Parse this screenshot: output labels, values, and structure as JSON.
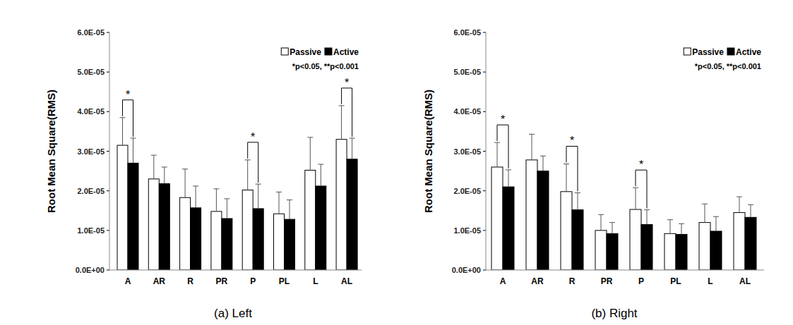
{
  "chart_data": [
    {
      "type": "bar",
      "title": "(a)  Left",
      "y_label": "Root Mean Square(RMS)",
      "categories": [
        "A",
        "AR",
        "R",
        "PR",
        "P",
        "PL",
        "L",
        "AL"
      ],
      "series": [
        {
          "name": "Passive",
          "color": "#ffffff",
          "values": [
            3.15e-05,
            2.3e-05,
            1.83e-05,
            1.48e-05,
            2.02e-05,
            1.42e-05,
            2.52e-05,
            3.3e-05
          ],
          "errors": [
            7e-06,
            6e-06,
            7.2e-06,
            5.7e-06,
            7.6e-06,
            5.5e-06,
            8.3e-06,
            8.5e-06
          ]
        },
        {
          "name": "Active",
          "color": "#000000",
          "values": [
            2.7e-05,
            2.18e-05,
            1.57e-05,
            1.3e-05,
            1.55e-05,
            1.28e-05,
            2.12e-05,
            2.8e-05
          ],
          "errors": [
            6.3e-06,
            4.2e-06,
            5.5e-06,
            5e-06,
            6.2e-06,
            4.9e-06,
            5.5e-06,
            5.3e-06
          ]
        }
      ],
      "ylim": [
        0,
        6e-05
      ],
      "yticks": [
        {
          "value": 0,
          "label": "0.0E+00"
        },
        {
          "value": 1e-05,
          "label": "1.0E-05"
        },
        {
          "value": 2e-05,
          "label": "2.0E-05"
        },
        {
          "value": 3e-05,
          "label": "3.0E-05"
        },
        {
          "value": 4e-05,
          "label": "4.0E-05"
        },
        {
          "value": 5e-05,
          "label": "5.0E-05"
        },
        {
          "value": 6e-05,
          "label": "6.0E-05"
        }
      ],
      "legend": "top-right",
      "annotations": [
        "*p<0.05, **p<0.001"
      ],
      "significance": [
        {
          "category": "A",
          "label": "*"
        },
        {
          "category": "P",
          "label": "*"
        },
        {
          "category": "AL",
          "label": "*"
        }
      ]
    },
    {
      "type": "bar",
      "title": "(b)  Right",
      "y_label": "Root Mean Square(RMS)",
      "categories": [
        "A",
        "AR",
        "R",
        "PR",
        "P",
        "PL",
        "L",
        "AL"
      ],
      "series": [
        {
          "name": "Passive",
          "color": "#ffffff",
          "values": [
            2.6e-05,
            2.78e-05,
            1.98e-05,
            1e-05,
            1.53e-05,
            9.2e-06,
            1.2e-05,
            1.45e-05
          ],
          "errors": [
            6.2e-06,
            6.5e-06,
            7e-06,
            4e-06,
            5.5e-06,
            3.5e-06,
            4.7e-06,
            4e-06
          ]
        },
        {
          "name": "Active",
          "color": "#000000",
          "values": [
            2.1e-05,
            2.5e-05,
            1.52e-05,
            9.2e-06,
            1.15e-05,
            9e-06,
            9.8e-06,
            1.33e-05
          ],
          "errors": [
            4.3e-06,
            3.8e-06,
            4.3e-06,
            2.8e-06,
            3.7e-06,
            2.7e-06,
            3.7e-06,
            3.2e-06
          ]
        }
      ],
      "ylim": [
        0,
        6e-05
      ],
      "yticks": [
        {
          "value": 0,
          "label": "0.0E+00"
        },
        {
          "value": 1e-05,
          "label": "1.0E-05"
        },
        {
          "value": 2e-05,
          "label": "2.0E-05"
        },
        {
          "value": 3e-05,
          "label": "3.0E-05"
        },
        {
          "value": 4e-05,
          "label": "4.0E-05"
        },
        {
          "value": 5e-05,
          "label": "5.0E-05"
        },
        {
          "value": 6e-05,
          "label": "6.0E-05"
        }
      ],
      "legend": "top-right",
      "annotations": [
        "*p<0.05, **p<0.001"
      ],
      "significance": [
        {
          "category": "A",
          "label": "*"
        },
        {
          "category": "R",
          "label": "*"
        },
        {
          "category": "P",
          "label": "*"
        }
      ]
    }
  ]
}
